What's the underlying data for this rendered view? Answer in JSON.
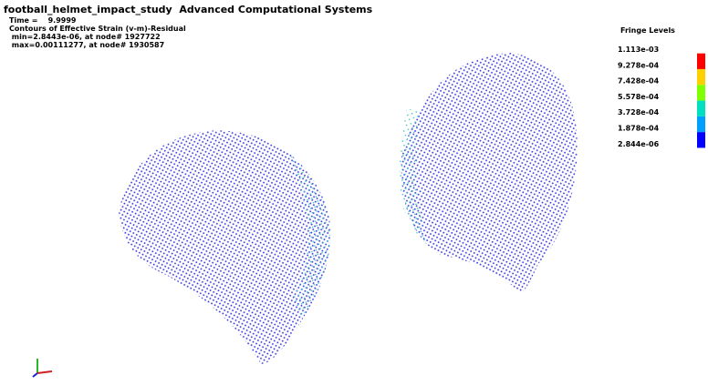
{
  "header": {
    "title": "football_helmet_impact_study  Advanced Computational Systems",
    "time": "Time =    9.9999",
    "contour": "Contours of Effective Strain (v-m)-Residual",
    "min": " min=2.8443e-06, at node# 1927722",
    "max": " max=0.00111277, at node# 1930587"
  },
  "legend": {
    "title": "Fringe Levels",
    "levels": [
      "1.113e-03",
      "9.278e-04",
      "7.428e-04",
      "5.578e-04",
      "3.728e-04",
      "1.878e-04",
      "2.844e-06"
    ],
    "colors": [
      "#ff0000",
      "#ffd000",
      "#7fff00",
      "#00e0c0",
      "#00a0ff",
      "#0000ff"
    ]
  }
}
